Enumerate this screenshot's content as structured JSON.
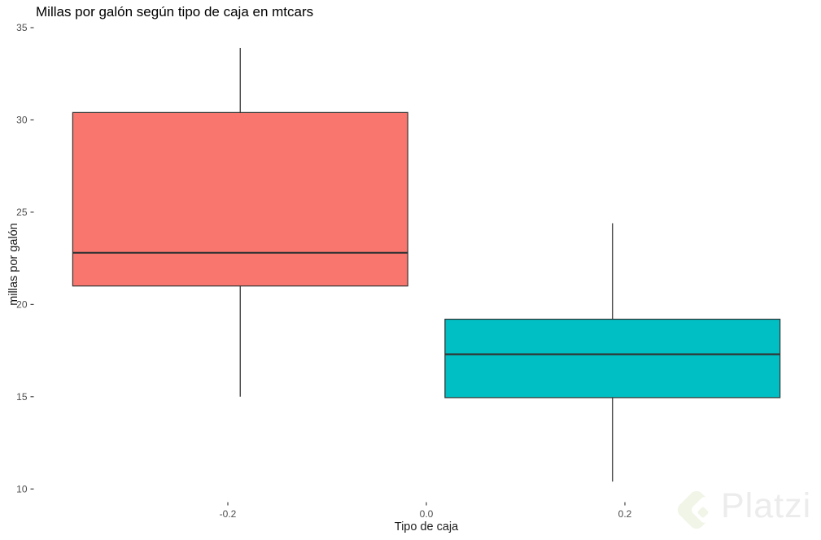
{
  "title": "Millas por galón según tipo de caja en mtcars",
  "axes": {
    "x_title": "Tipo de caja",
    "y_title": "millas por galón"
  },
  "watermark": {
    "brand": "Platzi",
    "logo_color": "#f0f5e7",
    "text_color": "#ececec"
  },
  "chart_data": {
    "type": "boxplot",
    "title": "Millas por galón según tipo de caja en mtcars",
    "xlabel": "Tipo de caja",
    "ylabel": "millas por galón",
    "x_ticks": [
      -0.2,
      0.0,
      0.2
    ],
    "x_tick_labels": [
      "-0.2",
      "0.0",
      "0.2"
    ],
    "y_ticks": [
      10,
      15,
      20,
      25,
      30,
      35
    ],
    "y_tick_labels": [
      "10",
      "15",
      "20",
      "25",
      "30",
      "35"
    ],
    "xlim": [
      -0.41,
      0.41
    ],
    "ylim": [
      9.2,
      35.1
    ],
    "grid": false,
    "legend": "none",
    "stroke_color": "#333333",
    "tick_label_color": "#4d4d4d",
    "series": [
      {
        "name": "boxplot-left",
        "fill": "#F8766D",
        "x_center": -0.1875,
        "box_width": 0.3375,
        "whisker_low": 15.0,
        "q1": 21.0,
        "median": 22.8,
        "q3": 30.4,
        "whisker_high": 33.9
      },
      {
        "name": "boxplot-right",
        "fill": "#00BFC4",
        "x_center": 0.1875,
        "box_width": 0.3375,
        "whisker_low": 10.4,
        "q1": 14.95,
        "median": 17.3,
        "q3": 19.2,
        "whisker_high": 24.4
      }
    ]
  }
}
